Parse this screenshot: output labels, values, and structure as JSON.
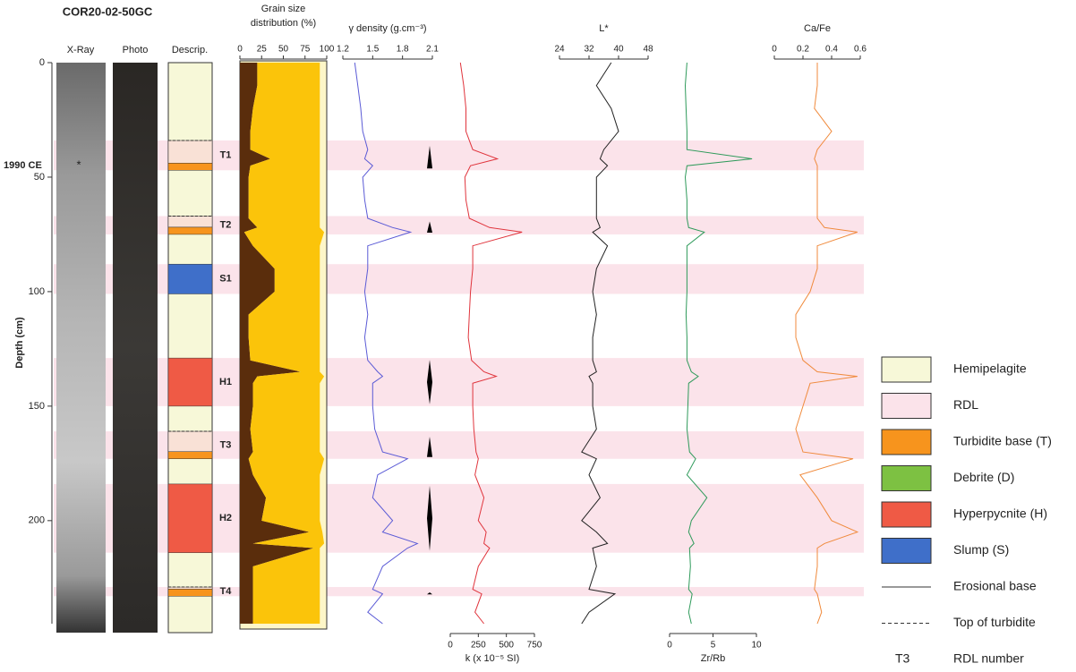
{
  "title": "COR20-02-50GC",
  "columns": [
    "X-Ray",
    "Photo",
    "Descrip."
  ],
  "depth_axis": {
    "label": "Depth (cm)",
    "lim": [
      0,
      245
    ],
    "ticks": [
      0,
      50,
      100,
      150,
      200
    ],
    "marker": {
      "label": "1990 CE",
      "depth": 45
    }
  },
  "depth": [
    0,
    10,
    20,
    30,
    38,
    42,
    45,
    50,
    60,
    68,
    72,
    74,
    80,
    90,
    100,
    110,
    120,
    130,
    135,
    137,
    140,
    150,
    160,
    170,
    173,
    180,
    190,
    200,
    205,
    210,
    212,
    220,
    230,
    232,
    240,
    245
  ],
  "rdl_bands": [
    {
      "label": "T1",
      "top": 34,
      "bottom": 47,
      "color": "#f7941d"
    },
    {
      "label": "T2",
      "top": 67,
      "bottom": 75,
      "color": "#f7941d"
    },
    {
      "label": "S1",
      "top": 88,
      "bottom": 101,
      "color": "#3f6fc9"
    },
    {
      "label": "H1",
      "top": 129,
      "bottom": 150,
      "color": "#ef5a45"
    },
    {
      "label": "T3",
      "top": 161,
      "bottom": 173,
      "color": "#f7941d"
    },
    {
      "label": "H2",
      "top": 184,
      "bottom": 214,
      "color": "#ef5a45"
    },
    {
      "label": "T4",
      "top": 229,
      "bottom": 233,
      "color": "#f7941d"
    }
  ],
  "chart_data": [
    {
      "type": "area",
      "xlabel": [
        "Grain size",
        "distribution (%)"
      ],
      "axis": "top",
      "xlim": [
        0,
        100
      ],
      "xticks": [
        0,
        25,
        50,
        75,
        100
      ],
      "background": "#fdf6c8",
      "series": [
        {
          "color": "#5a2d0c",
          "values": [
            20,
            20,
            15,
            12,
            12,
            35,
            12,
            10,
            10,
            10,
            20,
            5,
            15,
            40,
            40,
            10,
            10,
            12,
            70,
            20,
            15,
            15,
            12,
            15,
            10,
            15,
            30,
            25,
            80,
            15,
            85,
            15,
            15,
            15,
            15,
            15
          ]
        },
        {
          "color": "#fbc40a",
          "values": [
            72,
            72,
            77,
            80,
            80,
            57,
            80,
            82,
            82,
            82,
            72,
            92,
            77,
            52,
            52,
            82,
            82,
            80,
            22,
            77,
            77,
            77,
            80,
            77,
            87,
            77,
            62,
            67,
            15,
            82,
            7,
            77,
            77,
            77,
            77,
            77
          ]
        }
      ]
    },
    {
      "type": "line",
      "xlabel": "γ density (g.cm⁻³)",
      "axis": "top",
      "xlim": [
        1.2,
        2.1
      ],
      "xticks": [
        1.2,
        1.5,
        1.8,
        2.1
      ],
      "color": "#5b5bd6",
      "values": [
        1.32,
        1.35,
        1.38,
        1.4,
        1.45,
        1.42,
        1.5,
        1.4,
        1.42,
        1.45,
        1.7,
        1.88,
        1.45,
        1.45,
        1.42,
        1.45,
        1.42,
        1.45,
        1.55,
        1.6,
        1.5,
        1.5,
        1.52,
        1.6,
        1.85,
        1.55,
        1.5,
        1.7,
        1.6,
        1.95,
        1.85,
        1.6,
        1.5,
        1.6,
        1.45,
        1.6
      ]
    },
    {
      "type": "line",
      "xlabel": "k (x 10⁻⁵ SI)",
      "axis": "bottom",
      "xlim": [
        0,
        750
      ],
      "xticks": [
        0,
        250,
        500,
        750
      ],
      "color": "#e0343c",
      "values": [
        90,
        120,
        140,
        140,
        200,
        420,
        180,
        130,
        140,
        170,
        350,
        640,
        200,
        200,
        180,
        170,
        160,
        190,
        300,
        410,
        200,
        200,
        210,
        230,
        250,
        220,
        300,
        250,
        320,
        300,
        350,
        250,
        200,
        280,
        220,
        300
      ]
    },
    {
      "type": "line",
      "xlabel": "L*",
      "axis": "top",
      "xlim": [
        24,
        48
      ],
      "xticks": [
        24,
        32,
        40,
        48
      ],
      "color": "#222222",
      "values": [
        38,
        34,
        38,
        40,
        36,
        35,
        37,
        34,
        34,
        34,
        35,
        33,
        37,
        34,
        33,
        34,
        33,
        33,
        34,
        32,
        33,
        33,
        34,
        30,
        34,
        32,
        35,
        30,
        34,
        37,
        33,
        34,
        32,
        39,
        32,
        30
      ]
    },
    {
      "type": "line",
      "xlabel": "Zr/Rb",
      "axis": "bottom",
      "xlim": [
        0,
        10
      ],
      "xticks": [
        0,
        5,
        10
      ],
      "color": "#2e9a5a",
      "values": [
        2,
        1.8,
        1.9,
        2,
        2,
        9.5,
        2,
        1.8,
        2,
        2,
        2.2,
        4,
        2,
        2,
        2,
        1.9,
        2,
        2,
        2.5,
        3.3,
        2.2,
        2.1,
        2,
        2.3,
        3,
        2,
        4.3,
        2.5,
        2.2,
        2.8,
        2.3,
        2.4,
        2.2,
        2.6,
        2.2,
        2.5
      ]
    },
    {
      "type": "line",
      "xlabel": "Ca/Fe",
      "axis": "top",
      "xlim": [
        0,
        0.6
      ],
      "xticks": [
        0,
        0.2,
        0.4,
        0.6
      ],
      "color": "#f08a3c",
      "values": [
        0.3,
        0.3,
        0.28,
        0.4,
        0.3,
        0.28,
        0.3,
        0.3,
        0.3,
        0.3,
        0.35,
        0.58,
        0.3,
        0.3,
        0.25,
        0.15,
        0.15,
        0.2,
        0.3,
        0.58,
        0.25,
        0.2,
        0.15,
        0.2,
        0.55,
        0.18,
        0.3,
        0.4,
        0.58,
        0.35,
        0.3,
        0.3,
        0.28,
        0.3,
        0.33,
        0.3
      ]
    }
  ],
  "legend": [
    {
      "style": "box",
      "label": "Hemipelagite",
      "color": "#f7f8d8"
    },
    {
      "style": "box",
      "label": "RDL",
      "color": "#fbe3ea"
    },
    {
      "style": "box",
      "label": "Turbidite base (T)",
      "color": "#f7941d"
    },
    {
      "style": "box",
      "label": "Debrite (D)",
      "color": "#7dc142"
    },
    {
      "style": "box",
      "label": "Hyperpycnite (H)",
      "color": "#ef5a45"
    },
    {
      "style": "box",
      "label": "Slump (S)",
      "color": "#3f6fc9"
    },
    {
      "style": "solid",
      "label": "Erosional base"
    },
    {
      "style": "dashed",
      "label": "Top of turbidite"
    },
    {
      "style": "text",
      "symbol": "T3",
      "label": "RDL number"
    }
  ]
}
